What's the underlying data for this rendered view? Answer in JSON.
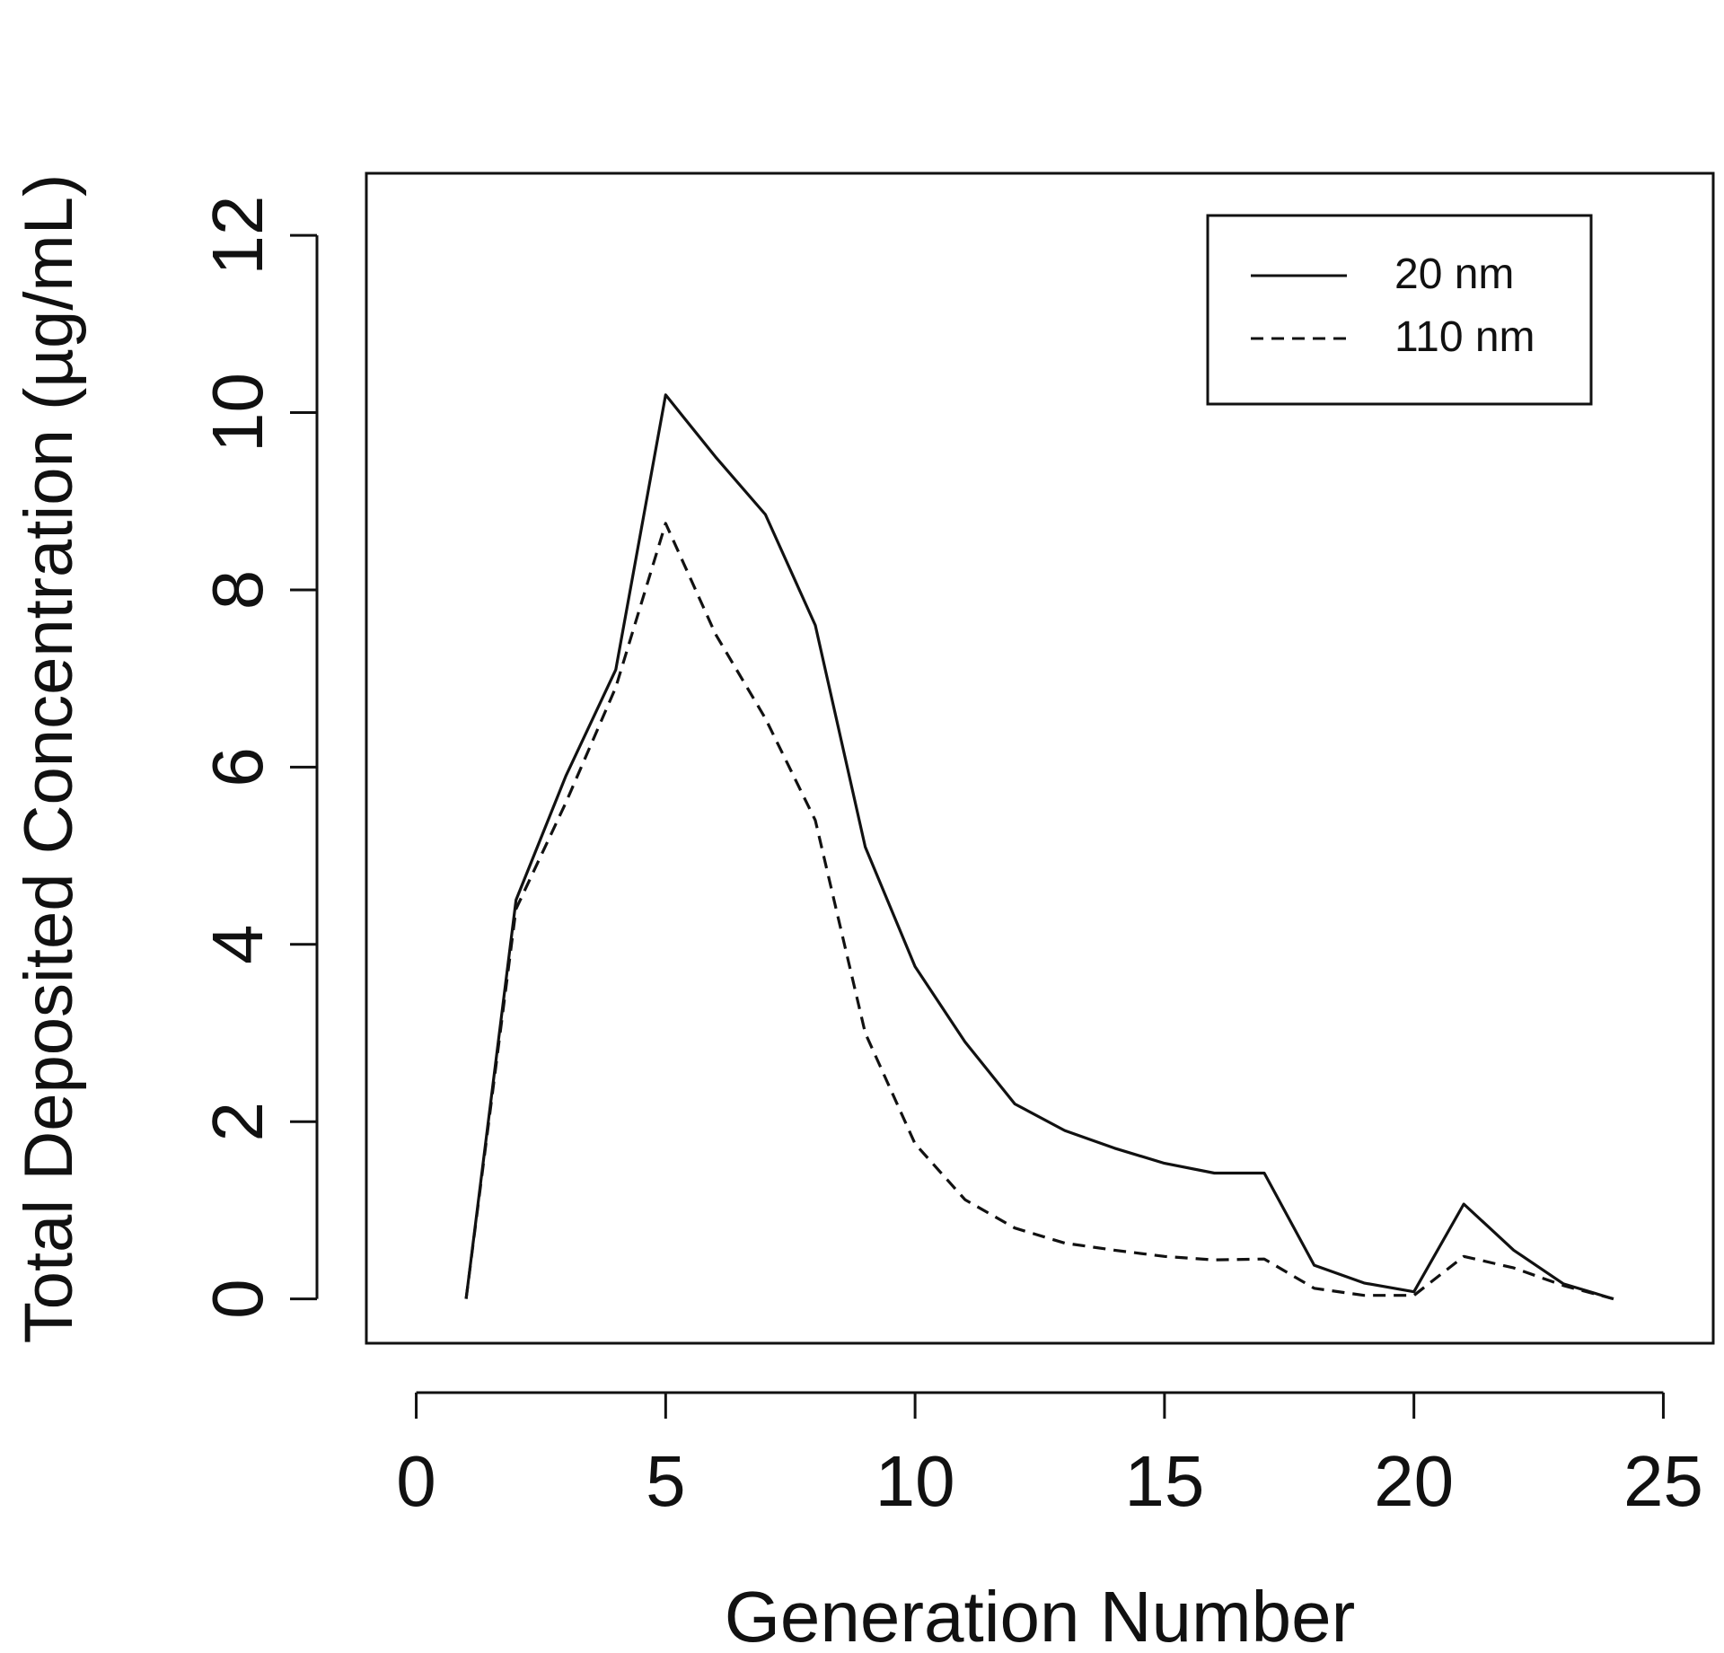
{
  "chart_data": {
    "type": "line",
    "title": "",
    "xlabel": "Generation Number",
    "ylabel": "Total Deposited Concentration (µg/mL)",
    "xlim": [
      -1.0,
      26.0
    ],
    "ylim": [
      -0.5,
      12.7
    ],
    "x_ticks": [
      0,
      5,
      10,
      15,
      20,
      25
    ],
    "y_ticks": [
      0,
      2,
      4,
      6,
      8,
      10,
      12
    ],
    "grid": false,
    "legend": {
      "position": "top-right"
    },
    "x": [
      1,
      2,
      3,
      4,
      5,
      6,
      7,
      8,
      9,
      10,
      11,
      12,
      13,
      14,
      15,
      16,
      17,
      18,
      19,
      20,
      21,
      22,
      23,
      24
    ],
    "series": [
      {
        "name": "20 nm",
        "line_style": "solid",
        "color": "#111111",
        "values": [
          0,
          4.5,
          5.9,
          7.1,
          10.2,
          9.5,
          8.85,
          7.6,
          5.1,
          3.75,
          2.9,
          2.2,
          1.9,
          1.7,
          1.53,
          1.42,
          1.42,
          0.38,
          0.18,
          0.08,
          1.07,
          0.55,
          0.17,
          0.0
        ]
      },
      {
        "name": "110 nm",
        "line_style": "dashed",
        "color": "#111111",
        "values": [
          0,
          4.4,
          5.6,
          6.9,
          8.75,
          7.5,
          6.55,
          5.4,
          3.0,
          1.75,
          1.12,
          0.8,
          0.63,
          0.55,
          0.48,
          0.44,
          0.45,
          0.12,
          0.04,
          0.04,
          0.48,
          0.35,
          0.15,
          0.0
        ]
      }
    ]
  }
}
